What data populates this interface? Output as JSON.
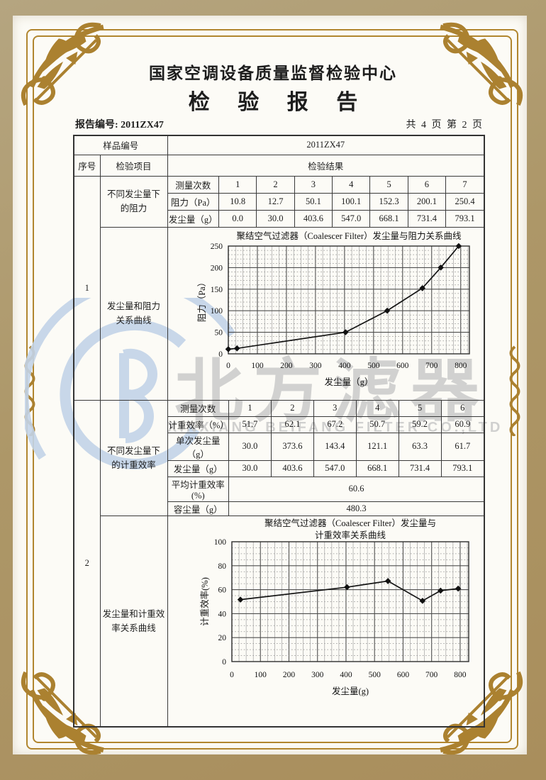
{
  "colors": {
    "gold": "#b1862f",
    "band": "#ad9768",
    "paper": "#fcfbf6",
    "wmblue": "#c3d4e8",
    "wmgray": "#c7c7c7"
  },
  "page": {
    "org_title": "国家空调设备质量监督检验中心",
    "doc_title": "检 验 报 告",
    "report_no": "报告编号: 2011ZX47",
    "page_info": "共 4 页 第 2 页"
  },
  "watermark": {
    "cn": "北方滤器",
    "en": "XINXIANG BEIFANG FILTER CO.,LTD",
    "logo": "beifang-filter-logo"
  },
  "table": {
    "sample_no_label": "样品编号",
    "sample_no_value": "2011ZX47",
    "col_seq": "序号",
    "col_item": "检验项目",
    "col_result": "检验结果",
    "section1": {
      "seq": "1",
      "item_top": "不同发尘量下\n的阻力",
      "item_chart": "发尘量和阻力\n关系曲线",
      "rows": [
        {
          "label": "测量次数",
          "values": [
            "1",
            "2",
            "3",
            "4",
            "5",
            "6",
            "7"
          ]
        },
        {
          "label": "阻力（Pa）",
          "values": [
            "10.8",
            "12.7",
            "50.1",
            "100.1",
            "152.3",
            "200.1",
            "250.4"
          ]
        },
        {
          "label": "发尘量（g）",
          "values": [
            "0.0",
            "30.0",
            "403.6",
            "547.0",
            "668.1",
            "731.4",
            "793.1"
          ]
        }
      ]
    },
    "section2": {
      "seq": "2",
      "item_top": "不同发尘量下\n的计重效率",
      "item_chart": "发尘量和计重效\n率关系曲线",
      "rows": [
        {
          "label": "测量次数",
          "values": [
            "1",
            "2",
            "3",
            "4",
            "5",
            "6"
          ]
        },
        {
          "label": "计重效率（%）",
          "values": [
            "51.7",
            "62.1",
            "67.2",
            "50.7",
            "59.2",
            "60.9"
          ]
        },
        {
          "label": "单次发尘量（g）",
          "values": [
            "30.0",
            "373.6",
            "143.4",
            "121.1",
            "63.3",
            "61.7"
          ]
        },
        {
          "label": "发尘量（g）",
          "values": [
            "30.0",
            "403.6",
            "547.0",
            "668.1",
            "731.4",
            "793.1"
          ]
        }
      ],
      "summary": [
        {
          "label": "平均计重效率(%)",
          "value": "60.6"
        },
        {
          "label": "容尘量（g）",
          "value": "480.3"
        }
      ]
    }
  },
  "chart_data": [
    {
      "type": "line",
      "title": "聚结空气过滤器（Coalescer Filter）发尘量与阻力关系曲线",
      "xlabel": "发尘量（g）",
      "ylabel": "阻力（Pa）",
      "x": [
        0.0,
        30.0,
        403.6,
        547.0,
        668.1,
        731.4,
        793.1
      ],
      "y": [
        10.8,
        12.7,
        50.1,
        100.1,
        152.3,
        200.1,
        250.4
      ],
      "xlim": [
        0,
        830
      ],
      "ylim": [
        0,
        250
      ],
      "xticks": [
        0,
        100,
        200,
        300,
        400,
        500,
        600,
        700,
        800
      ],
      "yticks": [
        0,
        50,
        100,
        150,
        200,
        250
      ],
      "grid": {
        "x_minor": 25,
        "x_major": 100,
        "y_minor": 10,
        "y_major": 50
      },
      "legend": "none",
      "marker": "diamond",
      "line_color": "#141414"
    },
    {
      "type": "line",
      "title": "聚结空气过滤器（Coalescer Filter）发尘量与",
      "title2": "计重效率关系曲线",
      "xlabel": "发尘量(g)",
      "ylabel": "计重效率(%)",
      "x": [
        30.0,
        403.6,
        547.0,
        668.1,
        731.4,
        793.1
      ],
      "y": [
        51.7,
        62.1,
        67.2,
        50.7,
        59.2,
        60.9
      ],
      "xlim": [
        0,
        830
      ],
      "ylim": [
        0,
        100
      ],
      "xticks": [
        0,
        100,
        200,
        300,
        400,
        500,
        600,
        700,
        800
      ],
      "yticks": [
        0,
        20,
        40,
        60,
        80,
        100
      ],
      "grid": {
        "x_minor": 25,
        "x_major": 100,
        "y_minor": 5,
        "y_major": 20
      },
      "legend": "none",
      "marker": "diamond",
      "line_color": "#141414"
    }
  ]
}
